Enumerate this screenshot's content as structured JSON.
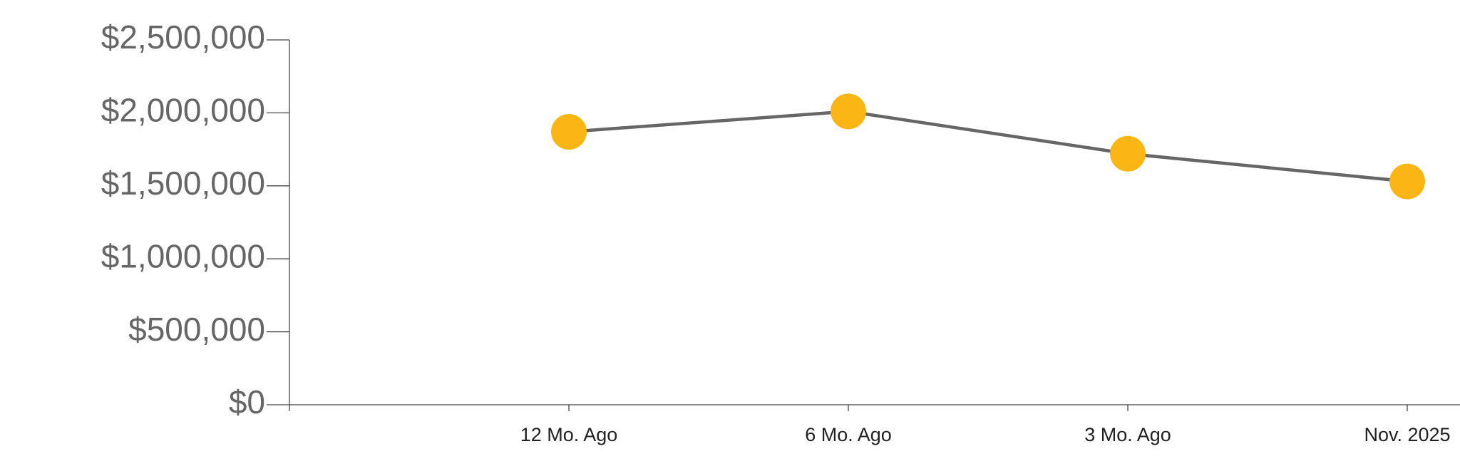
{
  "chart_data": {
    "type": "line",
    "categories": [
      "12 Mo. Ago",
      "6 Mo. Ago",
      "3 Mo. Ago",
      "Nov. 2025"
    ],
    "series": [
      {
        "color": "#fbb615",
        "line_color": "#666666",
        "values": [
          1870000,
          2010000,
          1720000,
          1530000
        ]
      }
    ],
    "ylim": [
      0,
      2500000
    ],
    "yticks": [
      {
        "value": 0,
        "label": "$0"
      },
      {
        "value": 500000,
        "label": "$500,000"
      },
      {
        "value": 1000000,
        "label": "$1,000,000"
      },
      {
        "value": 1500000,
        "label": "$1,500,000"
      },
      {
        "value": 2000000,
        "label": "$2,000,000"
      },
      {
        "value": 2500000,
        "label": "$2,500,000"
      }
    ],
    "grid": false
  }
}
